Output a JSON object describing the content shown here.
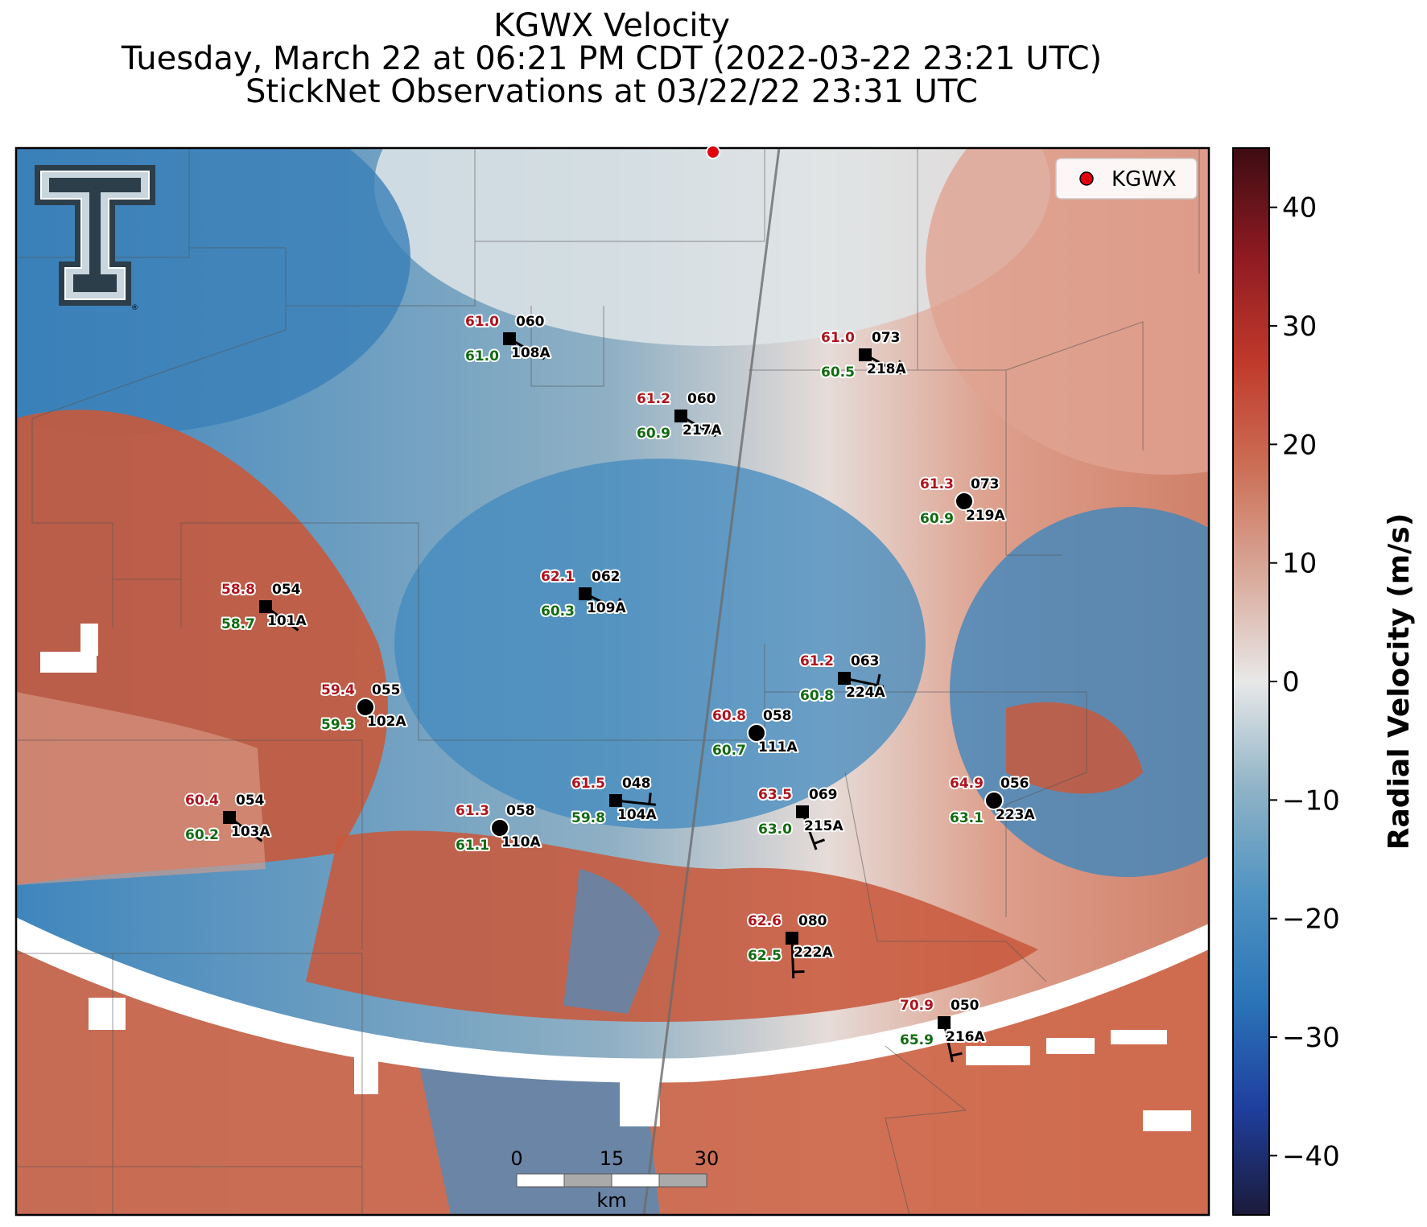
{
  "title": {
    "line1": "KGWX Velocity",
    "line2": "Tuesday, March 22 at 06:21 PM CDT (2022-03-22 23:21 UTC)",
    "line3": "StickNet Observations at 03/22/22 23:31 UTC"
  },
  "legend": {
    "label": "KGWX",
    "marker_color": "#e0000e"
  },
  "logo": {
    "icon": "texas-tech-double-t-logo",
    "mark": "®"
  },
  "colorbar": {
    "label": "Radial Velocity (m/s)",
    "ticks": [
      "40",
      "30",
      "20",
      "10",
      "0",
      "−10",
      "−20",
      "−30",
      "−40"
    ],
    "values": [
      40,
      30,
      20,
      10,
      0,
      -10,
      -20,
      -30,
      -40
    ],
    "range": [
      -45,
      45
    ],
    "colors": [
      "#1b1a3a",
      "#1f3f9e",
      "#2b74b8",
      "#4f93c2",
      "#8fb3c6",
      "#e8e8e8",
      "#d9a99a",
      "#cc6f56",
      "#c0392b",
      "#8e1a22",
      "#3d0c12"
    ]
  },
  "scalebar": {
    "labels": [
      "0",
      "15",
      "30"
    ],
    "unit": "km"
  },
  "stations": [
    {
      "id": "108A",
      "temp": "61.0",
      "dew": "61.0",
      "dir": "060",
      "marker": "square"
    },
    {
      "id": "218A",
      "temp": "61.0",
      "dew": "60.5",
      "dir": "073",
      "marker": "square"
    },
    {
      "id": "217A",
      "temp": "61.2",
      "dew": "60.9",
      "dir": "060",
      "marker": "square"
    },
    {
      "id": "219A",
      "temp": "61.3",
      "dew": "60.9",
      "dir": "073",
      "marker": "circle"
    },
    {
      "id": "109A",
      "temp": "62.1",
      "dew": "60.3",
      "dir": "062",
      "marker": "square"
    },
    {
      "id": "101A",
      "temp": "58.8",
      "dew": "58.7",
      "dir": "054",
      "marker": "square"
    },
    {
      "id": "224A",
      "temp": "61.2",
      "dew": "60.8",
      "dir": "063",
      "marker": "square"
    },
    {
      "id": "102A",
      "temp": "59.4",
      "dew": "59.3",
      "dir": "055",
      "marker": "circle"
    },
    {
      "id": "111A",
      "temp": "60.8",
      "dew": "60.7",
      "dir": "058",
      "marker": "circle"
    },
    {
      "id": "104A",
      "temp": "61.5",
      "dew": "59.8",
      "dir": "048",
      "marker": "square"
    },
    {
      "id": "215A",
      "temp": "63.5",
      "dew": "63.0",
      "dir": "069",
      "marker": "square"
    },
    {
      "id": "223A",
      "temp": "64.9",
      "dew": "63.1",
      "dir": "056",
      "marker": "circle"
    },
    {
      "id": "103A",
      "temp": "60.4",
      "dew": "60.2",
      "dir": "054",
      "marker": "square"
    },
    {
      "id": "110A",
      "temp": "61.3",
      "dew": "61.1",
      "dir": "058",
      "marker": "circle"
    },
    {
      "id": "222A",
      "temp": "62.6",
      "dew": "62.5",
      "dir": "080",
      "marker": "square"
    },
    {
      "id": "216A",
      "temp": "70.9",
      "dew": "65.9",
      "dir": "050",
      "marker": "square"
    }
  ]
}
